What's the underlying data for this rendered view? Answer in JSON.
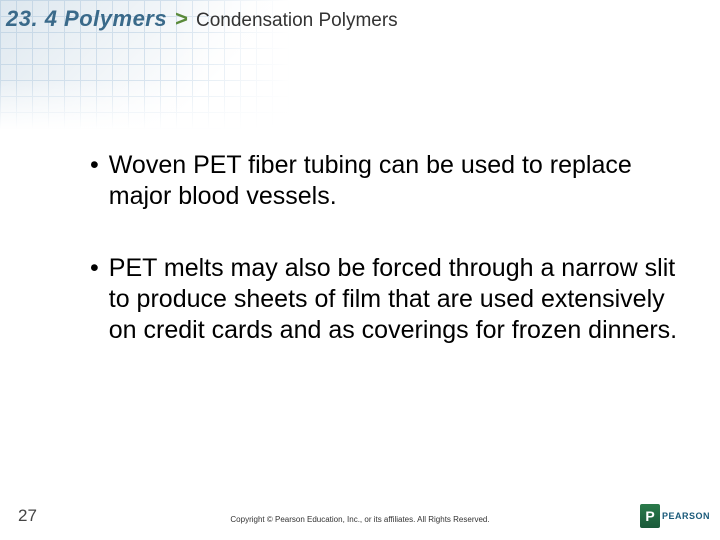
{
  "header": {
    "section": "23. 4 Polymers",
    "gt": ">",
    "subtitle": "Condensation Polymers"
  },
  "bullets": [
    "Woven PET fiber tubing can be used to replace major blood vessels.",
    "PET melts may also be forced through a narrow slit to produce sheets of film that are used extensively on credit cards and as coverings for frozen dinners."
  ],
  "footer": {
    "page": "27",
    "copyright": "Copyright © Pearson Education, Inc., or its affiliates. All Rights Reserved.",
    "logo_text": "PEARSON",
    "logo_letter": "P"
  }
}
